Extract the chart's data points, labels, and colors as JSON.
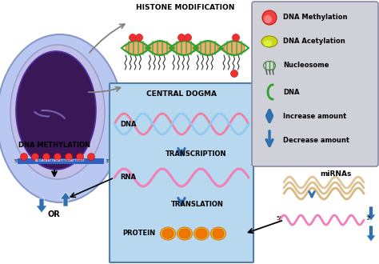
{
  "bg_color": "#ffffff",
  "cell_color": "#b8c8f0",
  "nucleus_outer_color": "#c0c0e8",
  "nucleus_inner_color": "#3a1858",
  "nucleus_mid_color": "#7060a0",
  "central_dogma_bg": "#b8d8f0",
  "legend_bg": "#d0d0d8",
  "title_histone": "HISTONE MODIFICATION",
  "title_central": "CENTRAL DOGMA",
  "label_dna_meth": "DNA METHYLATION",
  "label_dna": "DNA",
  "label_rna": "RNA",
  "label_protein": "PROTEIN",
  "label_transcription": "TRANSCRIPTION",
  "label_translation": "TRANSLATION",
  "label_mirnas": "miRNAs",
  "label_or": "OR",
  "legend_items": [
    "DNA Methylation",
    "DNA Acetylation",
    "Nucleosome",
    "DNA",
    "Increase amount",
    "Decrease amount"
  ],
  "arrow_color": "#3070b0",
  "dna_pink": "#f080a0",
  "dna_blue": "#90c8f0",
  "rna_pink": "#f080b8",
  "protein_color": "#f07800",
  "protein_outer": "#f8b830",
  "methylation_color": "#f03030",
  "acetylation_color": "#c8d820",
  "nucleosome_color": "#e8b880",
  "green_dna": "#30a030",
  "mirna_color": "#d8b880",
  "seq_bar_color": "#3060c0",
  "black": "#000000",
  "gray": "#808080"
}
